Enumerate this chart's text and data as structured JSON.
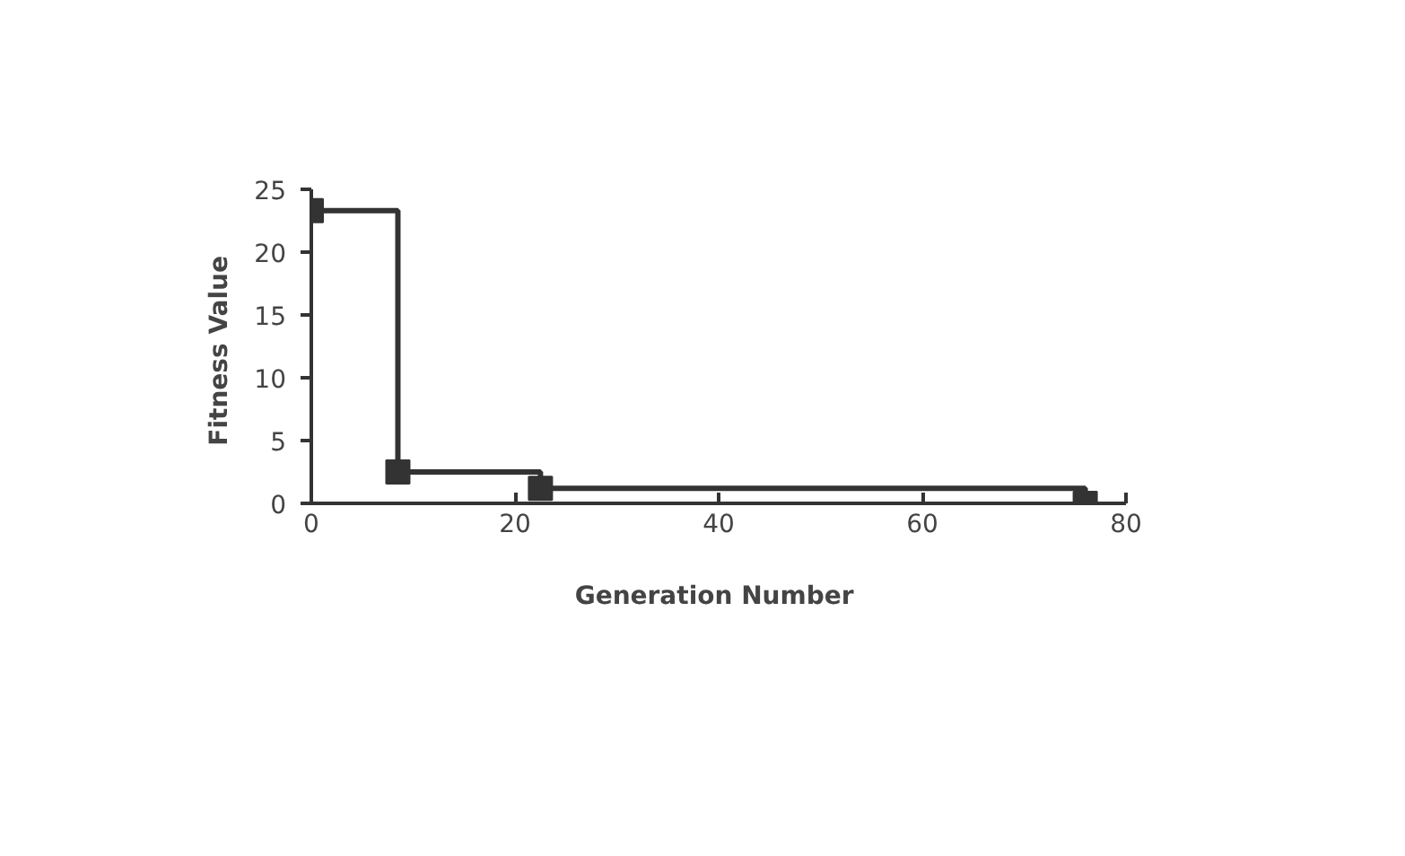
{
  "chart_data": {
    "type": "step",
    "xlabel": "Generation  Number",
    "ylabel": "Fitness  Value",
    "x": [
      0,
      8.5,
      22.5,
      76
    ],
    "series": [
      {
        "color": "#333333",
        "values": [
          23.3,
          2.5,
          1.2,
          0
        ]
      }
    ],
    "xlim": [
      0,
      80
    ],
    "ylim": [
      0,
      25
    ],
    "xticks": [
      0,
      20,
      40,
      60,
      80
    ],
    "yticks": [
      0,
      5,
      10,
      15,
      20,
      25
    ],
    "marker": "square",
    "grid": false
  }
}
